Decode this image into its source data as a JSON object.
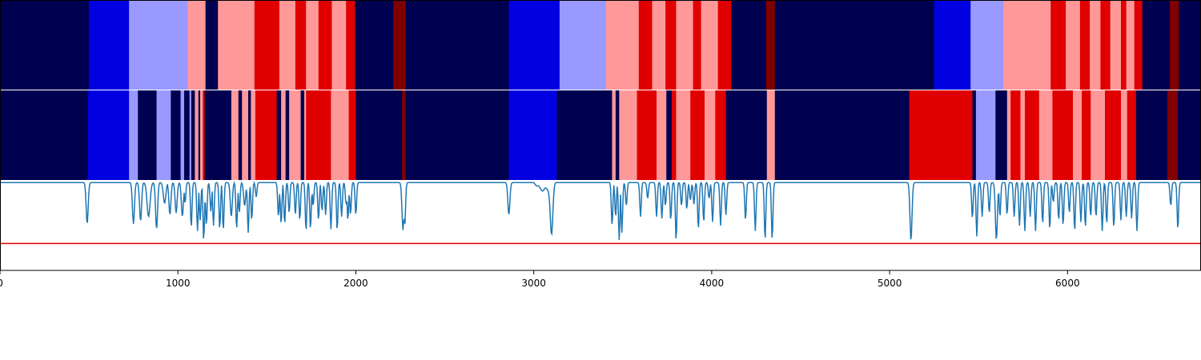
{
  "chart_data": {
    "type": "heatmap",
    "title": "",
    "xlim": [
      0,
      6750
    ],
    "ylim_line": [
      0,
      1
    ],
    "x_ticks": [
      0,
      1000,
      2000,
      3000,
      4000,
      5000,
      6000
    ],
    "x_tick_labels": [
      "0",
      "1000",
      "2000",
      "3000",
      "4000",
      "5000",
      "6000"
    ],
    "threshold": 0.3,
    "colors": {
      "c0": "#000050",
      "c1": "#0000e0",
      "c2": "#9999ff",
      "c3": "#ff9999",
      "c4": "#e00000",
      "c5": "#800000",
      "line": "#1f77b4",
      "threshold": "#e00000"
    },
    "bands": [
      {
        "name": "top-band",
        "segments": [
          [
            0,
            500,
            "c0"
          ],
          [
            500,
            725,
            "c1"
          ],
          [
            725,
            1055,
            "c2"
          ],
          [
            1055,
            1155,
            "c3"
          ],
          [
            1155,
            1225,
            "c0"
          ],
          [
            1225,
            1430,
            "c3"
          ],
          [
            1430,
            1570,
            "c4"
          ],
          [
            1570,
            1660,
            "c3"
          ],
          [
            1660,
            1720,
            "c4"
          ],
          [
            1720,
            1790,
            "c3"
          ],
          [
            1790,
            1865,
            "c4"
          ],
          [
            1865,
            1945,
            "c3"
          ],
          [
            1945,
            1995,
            "c4"
          ],
          [
            1995,
            2210,
            "c0"
          ],
          [
            2210,
            2280,
            "c5"
          ],
          [
            2280,
            2860,
            "c0"
          ],
          [
            2860,
            3145,
            "c1"
          ],
          [
            3145,
            3405,
            "c2"
          ],
          [
            3405,
            3590,
            "c3"
          ],
          [
            3590,
            3665,
            "c4"
          ],
          [
            3665,
            3740,
            "c3"
          ],
          [
            3740,
            3800,
            "c4"
          ],
          [
            3800,
            3895,
            "c3"
          ],
          [
            3895,
            3940,
            "c4"
          ],
          [
            3940,
            4035,
            "c3"
          ],
          [
            4035,
            4110,
            "c4"
          ],
          [
            4110,
            4305,
            "c0"
          ],
          [
            4305,
            4355,
            "c5"
          ],
          [
            4355,
            5250,
            "c0"
          ],
          [
            5250,
            5455,
            "c1"
          ],
          [
            5455,
            5640,
            "c2"
          ],
          [
            5640,
            5770,
            "c3"
          ],
          [
            5770,
            5905,
            "c3"
          ],
          [
            5905,
            5990,
            "c4"
          ],
          [
            5990,
            6070,
            "c3"
          ],
          [
            6070,
            6125,
            "c4"
          ],
          [
            6125,
            6185,
            "c3"
          ],
          [
            6185,
            6240,
            "c4"
          ],
          [
            6240,
            6300,
            "c3"
          ],
          [
            6300,
            6330,
            "c4"
          ],
          [
            6330,
            6375,
            "c3"
          ],
          [
            6375,
            6420,
            "c4"
          ],
          [
            6420,
            6575,
            "c0"
          ],
          [
            6575,
            6625,
            "c5"
          ],
          [
            6625,
            6750,
            "c0"
          ]
        ]
      },
      {
        "name": "middle-band",
        "segments": [
          [
            0,
            495,
            "c0"
          ],
          [
            495,
            725,
            "c1"
          ],
          [
            725,
            775,
            "c2"
          ],
          [
            775,
            880,
            "c0"
          ],
          [
            880,
            960,
            "c2"
          ],
          [
            960,
            1015,
            "c0"
          ],
          [
            1015,
            1035,
            "c2"
          ],
          [
            1035,
            1065,
            "c0"
          ],
          [
            1065,
            1075,
            "c2"
          ],
          [
            1075,
            1095,
            "c0"
          ],
          [
            1095,
            1115,
            "c3"
          ],
          [
            1115,
            1125,
            "c0"
          ],
          [
            1125,
            1140,
            "c3"
          ],
          [
            1140,
            1150,
            "c4"
          ],
          [
            1150,
            1300,
            "c0"
          ],
          [
            1300,
            1340,
            "c3"
          ],
          [
            1340,
            1360,
            "c0"
          ],
          [
            1360,
            1395,
            "c3"
          ],
          [
            1395,
            1410,
            "c0"
          ],
          [
            1410,
            1435,
            "c3"
          ],
          [
            1435,
            1555,
            "c4"
          ],
          [
            1555,
            1580,
            "c0"
          ],
          [
            1580,
            1605,
            "c3"
          ],
          [
            1605,
            1625,
            "c0"
          ],
          [
            1625,
            1690,
            "c3"
          ],
          [
            1690,
            1710,
            "c0"
          ],
          [
            1710,
            1720,
            "c3"
          ],
          [
            1720,
            1860,
            "c4"
          ],
          [
            1860,
            1960,
            "c3"
          ],
          [
            1960,
            2000,
            "c4"
          ],
          [
            2000,
            2260,
            "c0"
          ],
          [
            2260,
            2280,
            "c5"
          ],
          [
            2280,
            2860,
            "c0"
          ],
          [
            2860,
            3130,
            "c1"
          ],
          [
            3130,
            3440,
            "c0"
          ],
          [
            3440,
            3460,
            "c3"
          ],
          [
            3460,
            3480,
            "c0"
          ],
          [
            3480,
            3580,
            "c3"
          ],
          [
            3580,
            3690,
            "c4"
          ],
          [
            3690,
            3745,
            "c3"
          ],
          [
            3745,
            3775,
            "c0"
          ],
          [
            3775,
            3800,
            "c4"
          ],
          [
            3800,
            3880,
            "c3"
          ],
          [
            3880,
            3960,
            "c4"
          ],
          [
            3960,
            4020,
            "c3"
          ],
          [
            4020,
            4080,
            "c4"
          ],
          [
            4080,
            4310,
            "c0"
          ],
          [
            4310,
            4355,
            "c3"
          ],
          [
            4355,
            5110,
            "c0"
          ],
          [
            5110,
            5465,
            "c4"
          ],
          [
            5465,
            5485,
            "c0"
          ],
          [
            5485,
            5595,
            "c2"
          ],
          [
            5595,
            5660,
            "c0"
          ],
          [
            5660,
            5680,
            "c3"
          ],
          [
            5680,
            5735,
            "c4"
          ],
          [
            5735,
            5760,
            "c3"
          ],
          [
            5760,
            5840,
            "c4"
          ],
          [
            5840,
            5915,
            "c3"
          ],
          [
            5915,
            6030,
            "c4"
          ],
          [
            6030,
            6080,
            "c3"
          ],
          [
            6080,
            6130,
            "c4"
          ],
          [
            6130,
            6210,
            "c3"
          ],
          [
            6210,
            6300,
            "c4"
          ],
          [
            6300,
            6335,
            "c3"
          ],
          [
            6335,
            6385,
            "c4"
          ],
          [
            6385,
            6560,
            "c0"
          ],
          [
            6560,
            6620,
            "c5"
          ],
          [
            6620,
            6750,
            "c0"
          ]
        ]
      }
    ],
    "line_baseline": 0.98,
    "dips": [
      [
        490,
        0.52,
        8
      ],
      [
        750,
        0.52,
        8
      ],
      [
        790,
        0.55,
        8
      ],
      [
        835,
        0.6,
        12
      ],
      [
        880,
        0.46,
        8
      ],
      [
        925,
        0.75,
        10
      ],
      [
        955,
        0.62,
        8
      ],
      [
        990,
        0.64,
        8
      ],
      [
        1025,
        0.6,
        8
      ],
      [
        1040,
        0.75,
        6
      ],
      [
        1075,
        0.48,
        6
      ],
      [
        1110,
        0.44,
        6
      ],
      [
        1125,
        0.56,
        6
      ],
      [
        1145,
        0.33,
        6
      ],
      [
        1160,
        0.5,
        6
      ],
      [
        1185,
        0.66,
        6
      ],
      [
        1200,
        0.5,
        6
      ],
      [
        1235,
        0.46,
        6
      ],
      [
        1255,
        0.45,
        6
      ],
      [
        1300,
        0.6,
        8
      ],
      [
        1330,
        0.46,
        6
      ],
      [
        1345,
        0.64,
        6
      ],
      [
        1375,
        0.72,
        8
      ],
      [
        1395,
        0.42,
        6
      ],
      [
        1415,
        0.56,
        6
      ],
      [
        1440,
        0.82,
        6
      ],
      [
        1565,
        0.6,
        6
      ],
      [
        1580,
        0.52,
        6
      ],
      [
        1600,
        0.52,
        6
      ],
      [
        1625,
        0.64,
        6
      ],
      [
        1660,
        0.62,
        6
      ],
      [
        1685,
        0.56,
        6
      ],
      [
        1720,
        0.44,
        6
      ],
      [
        1745,
        0.46,
        6
      ],
      [
        1760,
        0.72,
        6
      ],
      [
        1790,
        0.56,
        6
      ],
      [
        1810,
        0.66,
        6
      ],
      [
        1830,
        0.62,
        6
      ],
      [
        1860,
        0.46,
        6
      ],
      [
        1895,
        0.45,
        6
      ],
      [
        1920,
        0.6,
        6
      ],
      [
        1945,
        0.74,
        6
      ],
      [
        1955,
        0.56,
        6
      ],
      [
        1970,
        0.62,
        6
      ],
      [
        2000,
        0.62,
        6
      ],
      [
        2265,
        0.45,
        8
      ],
      [
        2275,
        0.5,
        6
      ],
      [
        2860,
        0.62,
        8
      ],
      [
        3100,
        0.43,
        10
      ],
      [
        3440,
        0.5,
        6
      ],
      [
        3460,
        0.6,
        6
      ],
      [
        3480,
        0.34,
        6
      ],
      [
        3495,
        0.42,
        6
      ],
      [
        3520,
        0.72,
        6
      ],
      [
        3600,
        0.6,
        6
      ],
      [
        3640,
        0.8,
        6
      ],
      [
        3690,
        0.6,
        6
      ],
      [
        3720,
        0.58,
        6
      ],
      [
        3740,
        0.72,
        6
      ],
      [
        3770,
        0.56,
        6
      ],
      [
        3800,
        0.33,
        6
      ],
      [
        3830,
        0.72,
        6
      ],
      [
        3860,
        0.68,
        6
      ],
      [
        3880,
        0.78,
        6
      ],
      [
        3900,
        0.74,
        6
      ],
      [
        3925,
        0.46,
        6
      ],
      [
        3955,
        0.54,
        6
      ],
      [
        3985,
        0.8,
        6
      ],
      [
        4005,
        0.54,
        6
      ],
      [
        4050,
        0.5,
        6
      ],
      [
        4080,
        0.62,
        6
      ],
      [
        4190,
        0.56,
        6
      ],
      [
        4245,
        0.44,
        6
      ],
      [
        4300,
        0.34,
        6
      ],
      [
        4340,
        0.34,
        6
      ],
      [
        5120,
        0.33,
        8
      ],
      [
        5465,
        0.58,
        6
      ],
      [
        5490,
        0.38,
        6
      ],
      [
        5520,
        0.6,
        6
      ],
      [
        5560,
        0.64,
        6
      ],
      [
        5600,
        0.34,
        8
      ],
      [
        5620,
        0.6,
        6
      ],
      [
        5660,
        0.62,
        6
      ],
      [
        5700,
        0.6,
        6
      ],
      [
        5730,
        0.5,
        6
      ],
      [
        5760,
        0.44,
        6
      ],
      [
        5790,
        0.6,
        6
      ],
      [
        5820,
        0.44,
        6
      ],
      [
        5860,
        0.52,
        6
      ],
      [
        5900,
        0.46,
        6
      ],
      [
        5920,
        0.76,
        6
      ],
      [
        5950,
        0.56,
        6
      ],
      [
        5975,
        0.5,
        6
      ],
      [
        6010,
        0.64,
        6
      ],
      [
        6040,
        0.44,
        6
      ],
      [
        6075,
        0.54,
        6
      ],
      [
        6100,
        0.48,
        6
      ],
      [
        6130,
        0.6,
        6
      ],
      [
        6160,
        0.6,
        6
      ],
      [
        6195,
        0.44,
        6
      ],
      [
        6220,
        0.52,
        6
      ],
      [
        6260,
        0.48,
        6
      ],
      [
        6300,
        0.56,
        6
      ],
      [
        6330,
        0.6,
        6
      ],
      [
        6360,
        0.58,
        6
      ],
      [
        6390,
        0.44,
        6
      ],
      [
        6580,
        0.72,
        6
      ],
      [
        6620,
        0.46,
        6
      ]
    ],
    "bump": [
      3000,
      3120,
      0.1
    ]
  }
}
